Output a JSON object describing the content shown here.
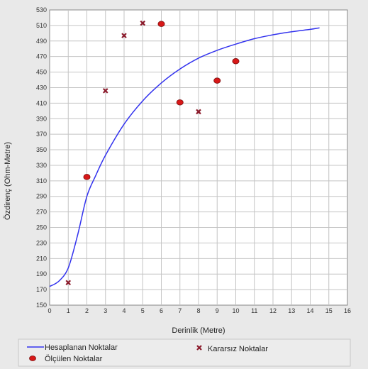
{
  "chart_data": {
    "type": "scatter",
    "title": "",
    "xlabel": "Derinlik (Metre)",
    "ylabel": "Özdirenç (Ohm-Metre)",
    "xlim": [
      0,
      16
    ],
    "ylim": [
      150,
      530
    ],
    "xticks": [
      0,
      1,
      2,
      3,
      4,
      5,
      6,
      7,
      8,
      9,
      10,
      11,
      12,
      13,
      14,
      15,
      16
    ],
    "yticks": [
      150,
      170,
      190,
      210,
      230,
      250,
      270,
      290,
      310,
      330,
      350,
      370,
      390,
      410,
      430,
      450,
      470,
      490,
      510,
      530
    ],
    "grid": true,
    "legend_position": "bottom",
    "series": [
      {
        "name": "Hesaplanan Noktalar",
        "kind": "line",
        "color": "#3333ee",
        "x": [
          0,
          0.5,
          1,
          1.5,
          2,
          2.5,
          3,
          4,
          5,
          6,
          7,
          8,
          9,
          10,
          11,
          12,
          13,
          14,
          14.5
        ],
        "y": [
          174,
          181,
          198,
          240,
          290,
          318,
          343,
          383,
          413,
          436,
          454,
          468,
          478,
          486,
          493,
          498,
          502,
          505,
          507
        ]
      },
      {
        "name": "Ölçülen Noktalar",
        "kind": "scatter",
        "marker": "circle",
        "color": "#d81818",
        "x": [
          2,
          6,
          7,
          9,
          10
        ],
        "y": [
          315,
          512,
          411,
          439,
          464
        ]
      },
      {
        "name": "Kararsız Noktalar",
        "kind": "scatter",
        "marker": "x",
        "color": "#8b1a2b",
        "x": [
          1,
          3,
          4,
          5,
          8
        ],
        "y": [
          179,
          426,
          497,
          513,
          399
        ]
      }
    ]
  }
}
